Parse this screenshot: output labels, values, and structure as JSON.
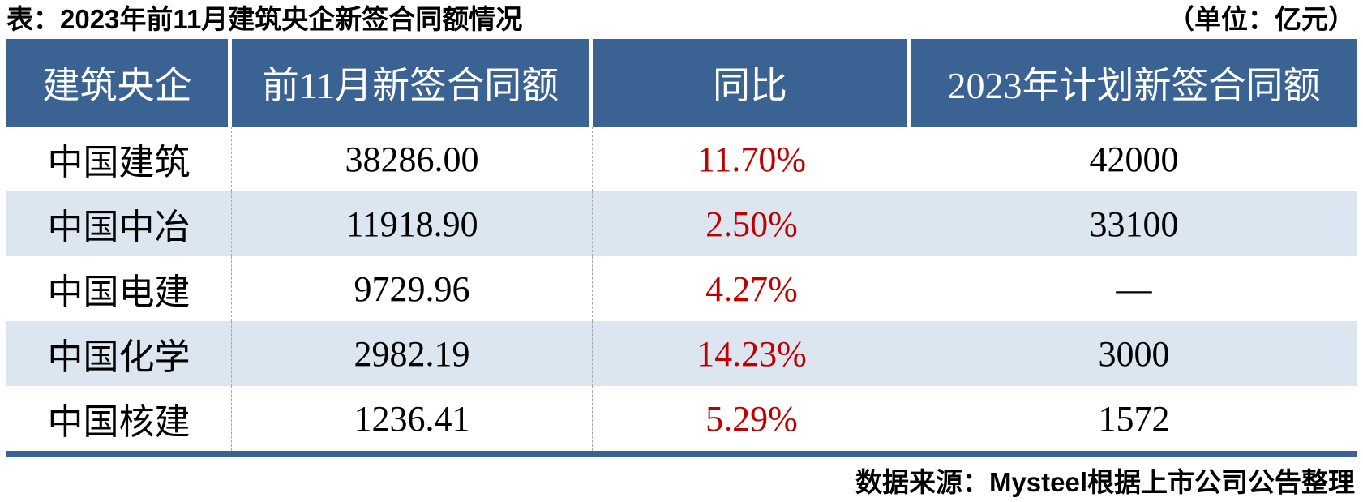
{
  "title": "表：2023年前11月建筑央企新签合同额情况",
  "unit_note": "（单位：亿元）",
  "colors": {
    "header_bg": "#3A6292",
    "alt_row_bg": "#DCE6F1",
    "yoy_red": "#C00000",
    "header_text": "#ffffff",
    "body_text": "#000000"
  },
  "chart_data": {
    "type": "table",
    "title": "表：2023年前11月建筑央企新签合同额情况",
    "unit": "亿元",
    "columns": [
      "建筑央企",
      "前11月新签合同额",
      "同比",
      "2023年计划新签合同额"
    ],
    "rows": [
      {
        "company": "中国建筑",
        "new_contract_value": "38286.00",
        "yoy": "11.70%",
        "plan_2023": "42000"
      },
      {
        "company": "中国中冶",
        "new_contract_value": "11918.90",
        "yoy": "2.50%",
        "plan_2023": "33100"
      },
      {
        "company": "中国电建",
        "new_contract_value": "9729.96",
        "yoy": "4.27%",
        "plan_2023": "—"
      },
      {
        "company": "中国化学",
        "new_contract_value": "2982.19",
        "yoy": "14.23%",
        "plan_2023": "3000"
      },
      {
        "company": "中国核建",
        "new_contract_value": "1236.41",
        "yoy": "5.29%",
        "plan_2023": "1572"
      }
    ],
    "source": "数据来源：Mysteel根据上市公司公告整理"
  }
}
